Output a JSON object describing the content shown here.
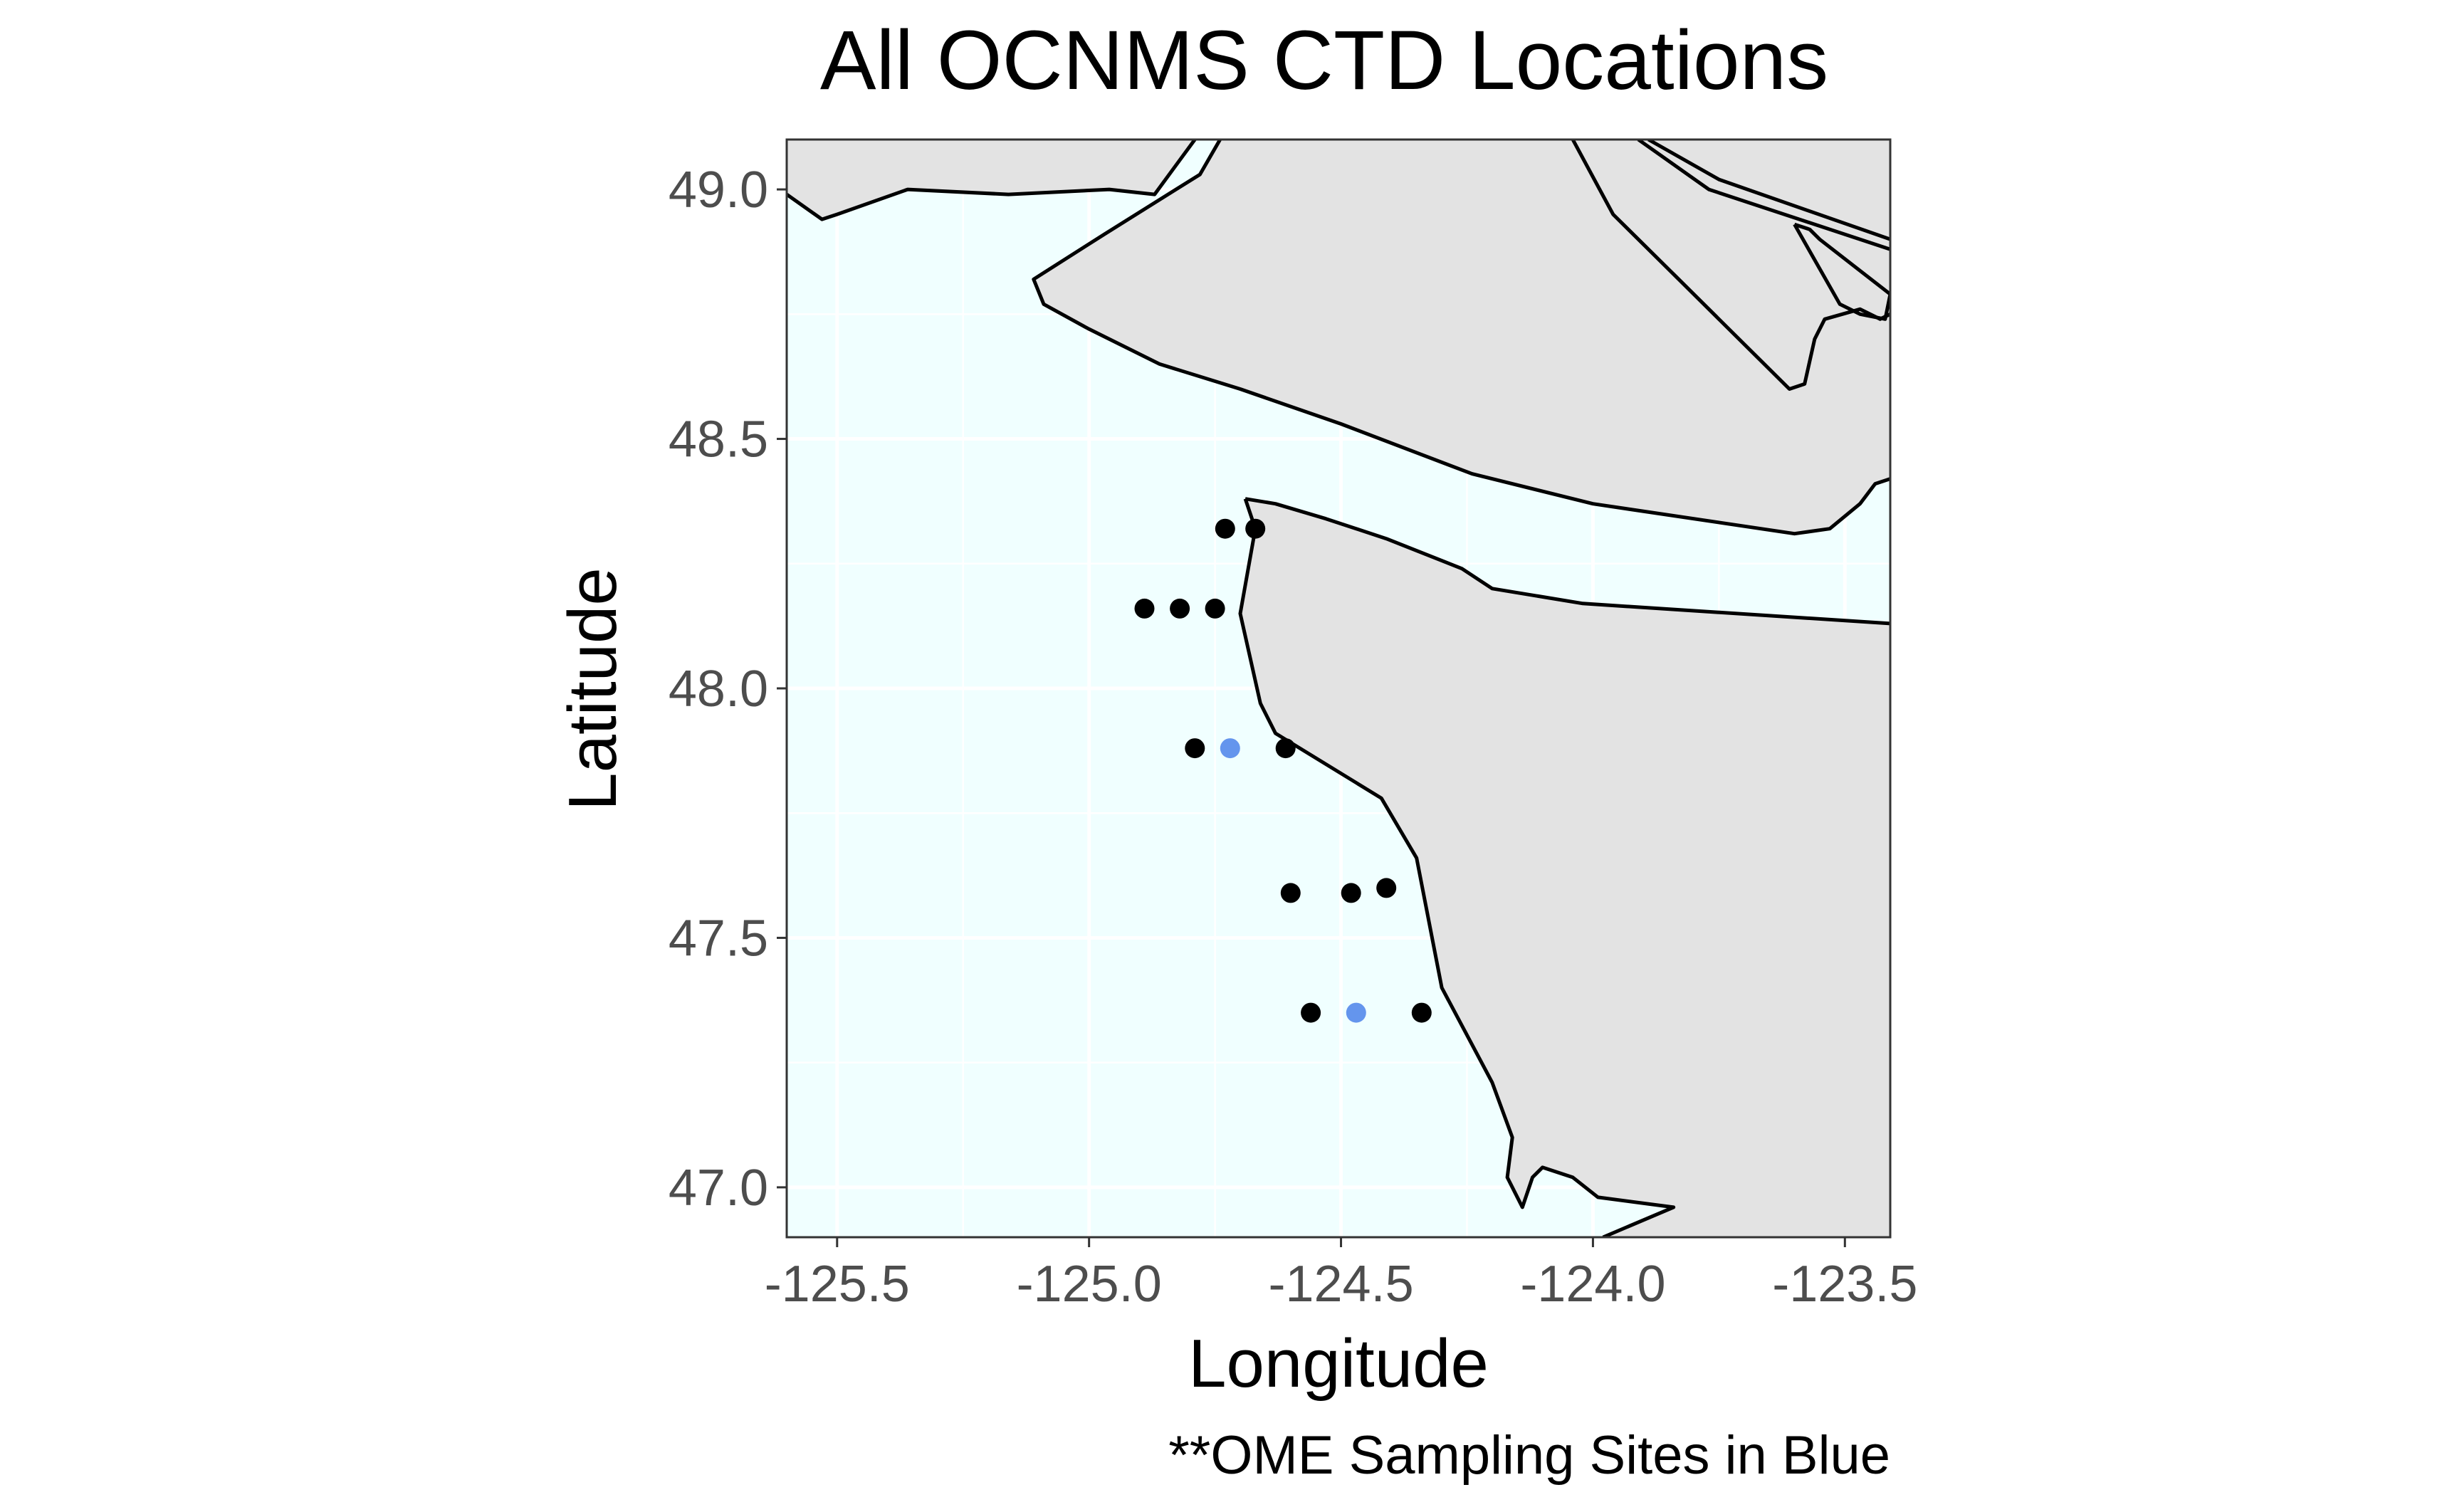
{
  "chart_data": {
    "type": "scatter",
    "title": "All OCNMS CTD Locations",
    "xlabel": "Longitude",
    "ylabel": "Latitude",
    "caption": "**OME Sampling Sites in Blue",
    "xlim": [
      -125.6,
      -123.41
    ],
    "ylim": [
      46.9,
      49.1
    ],
    "x_ticks": [
      -125.5,
      -125.0,
      -124.5,
      -124.0,
      -123.5
    ],
    "x_tick_labels": [
      "-125.5",
      "-125.0",
      "-124.5",
      "-124.0",
      "-123.5"
    ],
    "y_ticks": [
      47.0,
      47.5,
      48.0,
      48.5,
      49.0
    ],
    "y_tick_labels": [
      "47.0",
      "47.5",
      "48.0",
      "48.5",
      "49.0"
    ],
    "grid": true,
    "colors": {
      "water": "#f0ffff",
      "land": "#e3e3e3",
      "coast": "#000000",
      "grid": "#ffffff",
      "ctd_site": "#000000",
      "ome_site": "#6495ed"
    },
    "series": [
      {
        "name": "CTD sites",
        "color": "#000000",
        "points": [
          {
            "x": -124.73,
            "y": 48.32
          },
          {
            "x": -124.67,
            "y": 48.32
          },
          {
            "x": -124.89,
            "y": 48.16
          },
          {
            "x": -124.82,
            "y": 48.16
          },
          {
            "x": -124.75,
            "y": 48.16
          },
          {
            "x": -124.79,
            "y": 47.88
          },
          {
            "x": -124.61,
            "y": 47.88
          },
          {
            "x": -124.6,
            "y": 47.59
          },
          {
            "x": -124.48,
            "y": 47.59
          },
          {
            "x": -124.41,
            "y": 47.6
          },
          {
            "x": -124.56,
            "y": 47.35
          },
          {
            "x": -124.34,
            "y": 47.35
          }
        ]
      },
      {
        "name": "OME sites",
        "color": "#6495ed",
        "points": [
          {
            "x": -124.72,
            "y": 47.88
          },
          {
            "x": -124.47,
            "y": 47.35
          }
        ]
      }
    ],
    "land": [
      [
        [
          -125.6,
          49.1
        ],
        [
          -125.6,
          48.99
        ],
        [
          -125.53,
          48.94
        ],
        [
          -125.5,
          48.95
        ],
        [
          -125.36,
          49.0
        ],
        [
          -125.16,
          48.99
        ],
        [
          -124.96,
          49.0
        ],
        [
          -124.87,
          48.99
        ],
        [
          -124.79,
          49.1
        ]
      ],
      [
        [
          -124.74,
          49.1
        ],
        [
          -124.78,
          49.03
        ],
        [
          -124.97,
          48.91
        ],
        [
          -125.11,
          48.82
        ],
        [
          -125.09,
          48.77
        ],
        [
          -125.0,
          48.72
        ],
        [
          -124.86,
          48.65
        ],
        [
          -124.7,
          48.6
        ],
        [
          -124.5,
          48.53
        ],
        [
          -124.24,
          48.43
        ],
        [
          -124.0,
          48.37
        ],
        [
          -123.6,
          48.31
        ],
        [
          -123.53,
          48.32
        ],
        [
          -123.47,
          48.37
        ],
        [
          -123.44,
          48.41
        ],
        [
          -123.41,
          48.42
        ],
        [
          -123.41,
          49.1
        ]
      ],
      [
        [
          -124.69,
          48.38
        ],
        [
          -124.63,
          48.37
        ],
        [
          -124.53,
          48.34
        ],
        [
          -124.41,
          48.3
        ],
        [
          -124.26,
          48.24
        ],
        [
          -124.2,
          48.2
        ],
        [
          -124.02,
          48.17
        ],
        [
          -123.41,
          48.13
        ],
        [
          -123.41,
          46.9
        ],
        [
          -123.98,
          46.9
        ],
        [
          -123.84,
          46.96
        ],
        [
          -123.99,
          46.98
        ],
        [
          -124.04,
          47.02
        ],
        [
          -124.1,
          47.04
        ],
        [
          -124.12,
          47.02
        ],
        [
          -124.14,
          46.96
        ],
        [
          -124.17,
          47.02
        ],
        [
          -124.16,
          47.1
        ],
        [
          -124.2,
          47.21
        ],
        [
          -124.3,
          47.4
        ],
        [
          -124.35,
          47.66
        ],
        [
          -124.42,
          47.78
        ],
        [
          -124.63,
          47.91
        ],
        [
          -124.66,
          47.97
        ],
        [
          -124.7,
          48.15
        ],
        [
          -124.67,
          48.32
        ],
        [
          -124.69,
          48.38
        ]
      ],
      [
        [
          -123.6,
          48.93
        ],
        [
          -123.51,
          48.77
        ],
        [
          -123.47,
          48.75
        ],
        [
          -123.42,
          48.74
        ],
        [
          -123.41,
          48.79
        ],
        [
          -123.55,
          48.9
        ],
        [
          -123.57,
          48.92
        ],
        [
          -123.6,
          48.93
        ]
      ]
    ],
    "coast_lines": [
      [
        [
          -125.6,
          48.99
        ],
        [
          -125.53,
          48.94
        ],
        [
          -125.5,
          48.95
        ],
        [
          -125.36,
          49.0
        ],
        [
          -125.16,
          48.99
        ],
        [
          -124.96,
          49.0
        ],
        [
          -124.87,
          48.99
        ],
        [
          -124.79,
          49.1
        ]
      ],
      [
        [
          -124.74,
          49.1
        ],
        [
          -124.78,
          49.03
        ],
        [
          -124.97,
          48.91
        ],
        [
          -125.11,
          48.82
        ],
        [
          -125.09,
          48.77
        ],
        [
          -125.0,
          48.72
        ],
        [
          -124.86,
          48.65
        ],
        [
          -124.7,
          48.6
        ],
        [
          -124.5,
          48.53
        ],
        [
          -124.24,
          48.43
        ],
        [
          -124.0,
          48.37
        ],
        [
          -123.6,
          48.31
        ],
        [
          -123.53,
          48.32
        ],
        [
          -123.47,
          48.37
        ],
        [
          -123.44,
          48.41
        ],
        [
          -123.41,
          48.42
        ]
      ],
      [
        [
          -124.69,
          48.38
        ],
        [
          -124.63,
          48.37
        ],
        [
          -124.53,
          48.34
        ],
        [
          -124.41,
          48.3
        ],
        [
          -124.26,
          48.24
        ],
        [
          -124.2,
          48.2
        ],
        [
          -124.02,
          48.17
        ],
        [
          -123.41,
          48.13
        ]
      ],
      [
        [
          -124.69,
          48.38
        ],
        [
          -124.67,
          48.32
        ],
        [
          -124.7,
          48.15
        ],
        [
          -124.66,
          47.97
        ],
        [
          -124.63,
          47.91
        ],
        [
          -124.42,
          47.78
        ],
        [
          -124.35,
          47.66
        ],
        [
          -124.3,
          47.4
        ],
        [
          -124.2,
          47.21
        ],
        [
          -124.16,
          47.1
        ],
        [
          -124.17,
          47.02
        ],
        [
          -124.14,
          46.96
        ],
        [
          -124.12,
          47.02
        ],
        [
          -124.1,
          47.04
        ],
        [
          -124.04,
          47.02
        ],
        [
          -123.99,
          46.98
        ],
        [
          -123.84,
          46.96
        ],
        [
          -123.98,
          46.9
        ]
      ],
      [
        [
          -123.6,
          48.93
        ],
        [
          -123.51,
          48.77
        ],
        [
          -123.47,
          48.75
        ],
        [
          -123.42,
          48.74
        ],
        [
          -123.41,
          48.79
        ],
        [
          -123.55,
          48.9
        ],
        [
          -123.57,
          48.92
        ],
        [
          -123.6,
          48.93
        ]
      ],
      [
        [
          -124.04,
          49.1
        ],
        [
          -123.96,
          48.95
        ],
        [
          -123.84,
          48.83
        ],
        [
          -123.61,
          48.6
        ],
        [
          -123.58,
          48.61
        ],
        [
          -123.56,
          48.7
        ],
        [
          -123.54,
          48.74
        ],
        [
          -123.47,
          48.76
        ],
        [
          -123.43,
          48.74
        ],
        [
          -123.41,
          48.75
        ]
      ],
      [
        [
          -123.91,
          49.1
        ],
        [
          -123.77,
          49.0
        ],
        [
          -123.41,
          48.88
        ]
      ],
      [
        [
          -123.89,
          49.1
        ],
        [
          -123.75,
          49.02
        ],
        [
          -123.41,
          48.9
        ]
      ]
    ]
  }
}
